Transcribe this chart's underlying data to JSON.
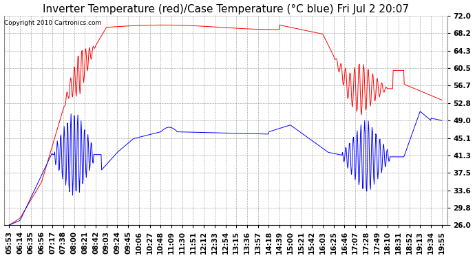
{
  "title": "Inverter Temperature (red)/Case Temperature (°C blue) Fri Jul 2 20:07",
  "copyright": "Copyright 2010 Cartronics.com",
  "ylim": [
    26.0,
    72.0
  ],
  "yticks": [
    26.0,
    29.8,
    33.6,
    37.5,
    41.3,
    45.1,
    49.0,
    52.8,
    56.7,
    60.5,
    64.3,
    68.2,
    72.0
  ],
  "background_color": "#ffffff",
  "grid_color": "#aaaaaa",
  "red_color": "#ff0000",
  "blue_color": "#0000ff",
  "title_fontsize": 11,
  "tick_fontsize": 7.5,
  "xtick_labels": [
    "05:53",
    "06:14",
    "06:35",
    "06:56",
    "07:17",
    "07:38",
    "08:00",
    "08:21",
    "08:42",
    "09:03",
    "09:24",
    "09:45",
    "10:06",
    "10:27",
    "10:48",
    "11:09",
    "11:30",
    "11:51",
    "12:12",
    "12:33",
    "12:54",
    "13:15",
    "13:36",
    "13:57",
    "14:18",
    "14:39",
    "15:00",
    "15:21",
    "15:42",
    "16:03",
    "16:25",
    "16:46",
    "17:07",
    "17:28",
    "17:49",
    "18:10",
    "18:31",
    "18:52",
    "19:13",
    "19:34",
    "19:55"
  ]
}
